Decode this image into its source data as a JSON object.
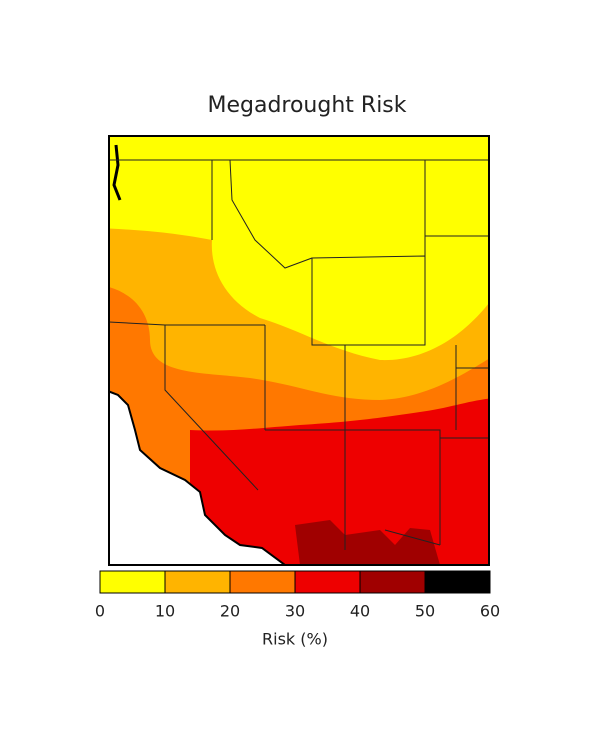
{
  "title": "Megadrought Risk",
  "colorbar": {
    "ticks": [
      0,
      10,
      20,
      30,
      40,
      50,
      60
    ],
    "colors": [
      "#ffff00",
      "#ffb400",
      "#ff7800",
      "#ee0000",
      "#a00000",
      "#000000"
    ],
    "label": "Risk (%)"
  }
}
